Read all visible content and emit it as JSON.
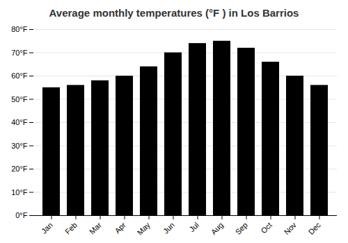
{
  "chart_data": {
    "type": "bar",
    "title": "Average monthly temperatures (°F ) in Los Barrios",
    "categories": [
      "Jan",
      "Feb",
      "Mar",
      "Apr",
      "May",
      "Jun",
      "Jul",
      "Aug",
      "Sep",
      "Oct",
      "Nov",
      "Dec"
    ],
    "values": [
      55,
      56,
      58,
      60,
      64,
      70,
      74,
      75,
      72,
      66,
      60,
      56
    ],
    "ylim": [
      0,
      80
    ],
    "yticks": [
      {
        "value": 0,
        "label": "0°F"
      },
      {
        "value": 10,
        "label": "10°F"
      },
      {
        "value": 20,
        "label": "20°F"
      },
      {
        "value": 30,
        "label": "30°F"
      },
      {
        "value": 40,
        "label": "40°F"
      },
      {
        "value": 50,
        "label": "50°F"
      },
      {
        "value": 60,
        "label": "60°F"
      },
      {
        "value": 70,
        "label": "70°F"
      },
      {
        "value": 80,
        "label": "80°F"
      }
    ],
    "grid": true
  }
}
